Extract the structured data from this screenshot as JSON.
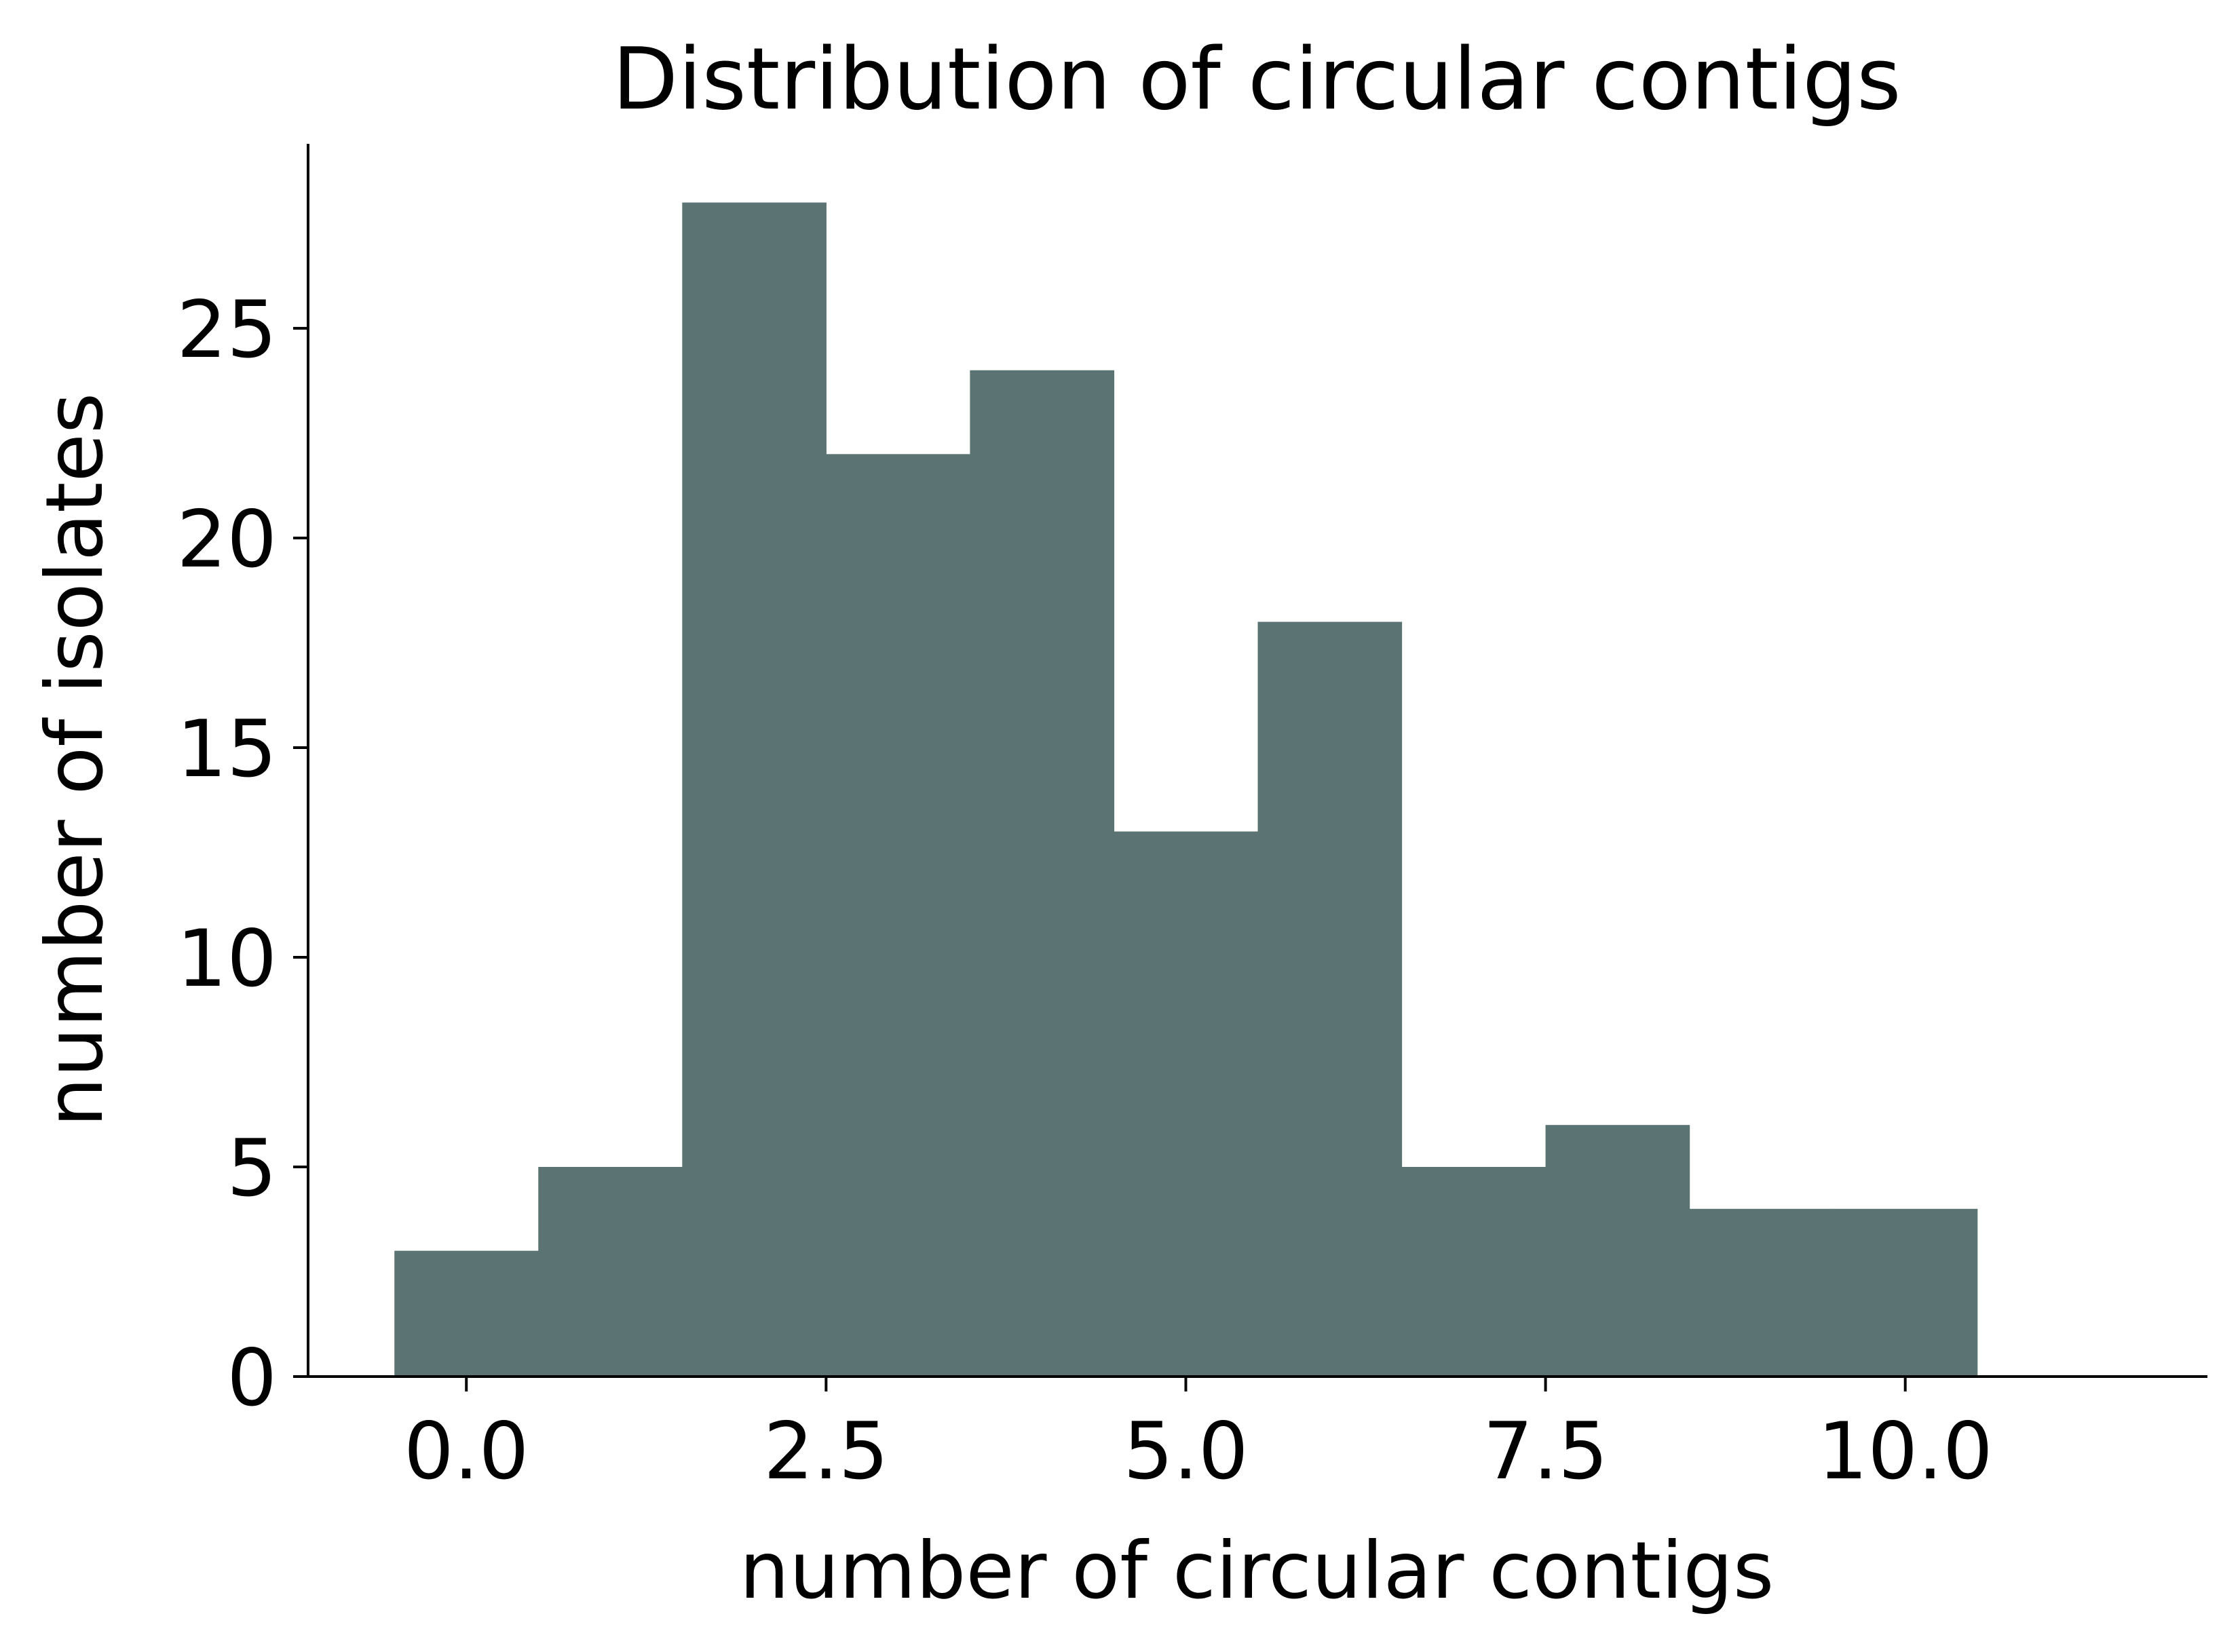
{
  "chart_data": {
    "type": "bar",
    "title": "Distribution of circular contigs",
    "xlabel": "number of circular contigs",
    "ylabel": "number of isolates",
    "bin_edges": [
      -0.5,
      0.5,
      1.5,
      2.5,
      3.5,
      4.5,
      5.5,
      6.5,
      7.5,
      8.5,
      9.5,
      10.5
    ],
    "values": [
      3,
      5,
      28,
      22,
      24,
      13,
      18,
      5,
      6,
      4,
      4
    ],
    "xlim": [
      -1.1,
      12.1
    ],
    "ylim": [
      0,
      29.4
    ],
    "x_ticks": [
      0.0,
      2.5,
      5.0,
      7.5,
      10.0
    ],
    "x_tick_labels": [
      "0.0",
      "2.5",
      "5.0",
      "7.5",
      "10.0"
    ],
    "y_ticks": [
      0,
      5,
      10,
      15,
      20,
      25
    ],
    "y_tick_labels": [
      "0",
      "5",
      "10",
      "15",
      "20",
      "25"
    ],
    "bar_color": "#5b7373",
    "grid": false,
    "legend": "none"
  }
}
